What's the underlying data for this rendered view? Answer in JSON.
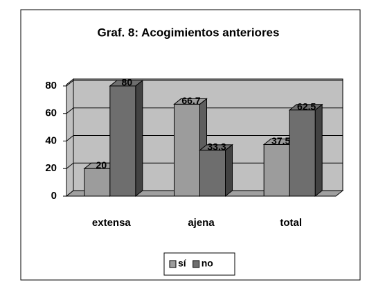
{
  "chart_data": {
    "type": "bar3d",
    "title": "Graf. 8: Acogimientos anteriores",
    "categories": [
      "extensa",
      "ajena",
      "total"
    ],
    "series": [
      {
        "name": "sí",
        "color": "#9c9c9c",
        "values": [
          20,
          66.7,
          37.5
        ]
      },
      {
        "name": "no",
        "color": "#6e6e6e",
        "values": [
          80,
          33.3,
          62.5
        ]
      }
    ],
    "ylim": [
      0,
      80
    ],
    "yticks": [
      0,
      20,
      40,
      60,
      80
    ],
    "grid": true,
    "legend": "bottom"
  }
}
